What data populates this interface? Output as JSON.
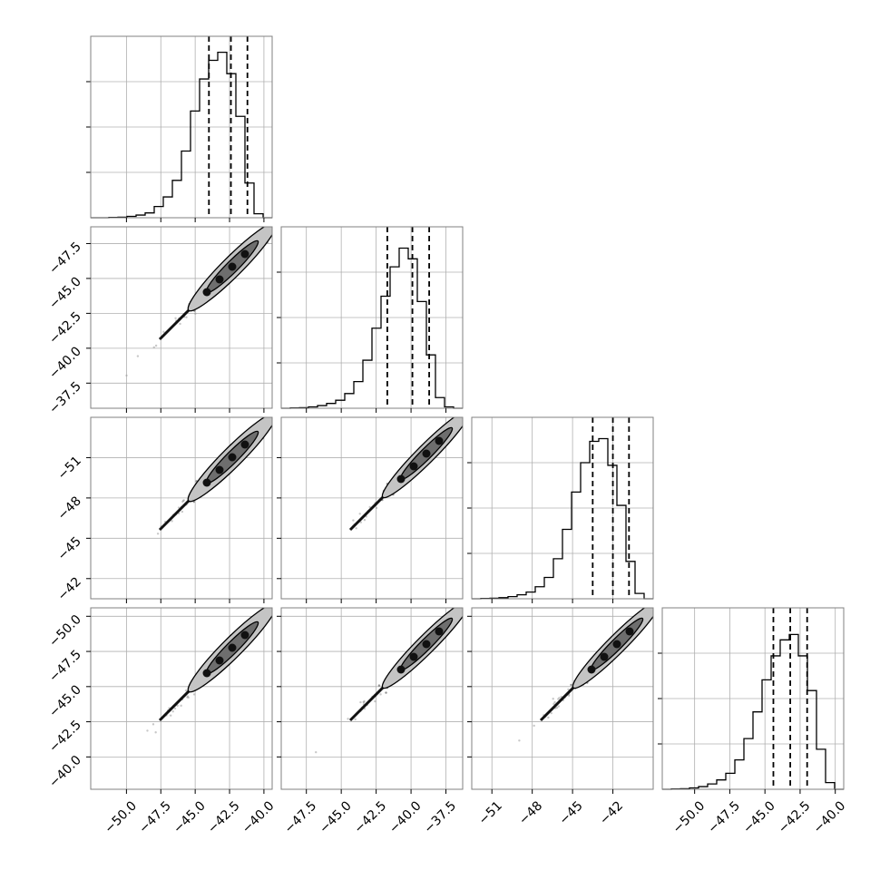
{
  "chart_data": {
    "type": "corner",
    "x_ticks": [
      [
        "−50.0",
        "−47.5",
        "−45.0",
        "−42.5",
        "−40.0"
      ],
      [
        "−47.5",
        "−45.0",
        "−42.5",
        "−40.0",
        "−37.5"
      ],
      [
        "−51",
        "−48",
        "−45",
        "−42"
      ],
      [
        "−50.0",
        "−47.5",
        "−45.0",
        "−42.5",
        "−40.0"
      ]
    ],
    "y_ticks": [
      [],
      [
        "−37.5",
        "−40.0",
        "−42.5",
        "−45.0",
        "−47.5"
      ],
      [
        "−42",
        "−45",
        "−48",
        "−51"
      ],
      [
        "−40.0",
        "−42.5",
        "−45.0",
        "−47.5",
        "−50.0"
      ]
    ],
    "parameters": [
      {
        "range": [
          -52.6,
          -39.4
        ],
        "major_ticks": [
          -50.0,
          -47.5,
          -45.0,
          -42.5,
          -40.0
        ],
        "quantiles": [
          -44.0,
          -42.4,
          -41.2
        ],
        "hist_bins": [
          -52.6,
          -51.94,
          -51.28,
          -50.62,
          -49.96,
          -49.3,
          -48.64,
          -47.98,
          -47.32,
          -46.66,
          -46.0,
          -45.34,
          -44.68,
          -44.02,
          -43.36,
          -42.7,
          -42.04,
          -41.38,
          -40.72,
          -40.06,
          -39.4
        ],
        "hist_counts": [
          0,
          0,
          1,
          2,
          5,
          10,
          18,
          42,
          78,
          140,
          250,
          400,
          520,
          590,
          620,
          540,
          380,
          130,
          15,
          0
        ]
      },
      {
        "range": [
          -49.3,
          -36.3
        ],
        "major_ticks": [
          -47.5,
          -45.0,
          -42.5,
          -40.0,
          -37.5
        ],
        "quantiles": [
          -41.7,
          -39.9,
          -38.7
        ],
        "hist_bins": [
          -49.3,
          -48.65,
          -48.0,
          -47.35,
          -46.7,
          -46.05,
          -45.4,
          -44.75,
          -44.1,
          -43.45,
          -42.8,
          -42.15,
          -41.5,
          -40.85,
          -40.2,
          -39.55,
          -38.9,
          -38.25,
          -37.6,
          -36.95,
          -36.3
        ],
        "hist_counts": [
          0,
          1,
          2,
          5,
          10,
          18,
          30,
          55,
          100,
          180,
          300,
          420,
          530,
          600,
          560,
          400,
          200,
          40,
          5,
          0
        ]
      },
      {
        "range": [
          -52.5,
          -39.0
        ],
        "major_ticks": [
          -51,
          -48,
          -45,
          -42
        ],
        "quantiles": [
          -43.5,
          -42.0,
          -40.8
        ],
        "hist_bins": [
          -52.5,
          -51.825,
          -51.15,
          -50.475,
          -49.8,
          -49.125,
          -48.45,
          -47.775,
          -47.1,
          -46.425,
          -45.75,
          -45.075,
          -44.4,
          -43.725,
          -43.05,
          -42.375,
          -41.7,
          -41.025,
          -40.35,
          -39.675,
          -39.0
        ],
        "hist_counts": [
          0,
          1,
          2,
          4,
          8,
          15,
          25,
          45,
          80,
          150,
          260,
          400,
          510,
          590,
          600,
          500,
          350,
          140,
          20,
          0
        ]
      },
      {
        "range": [
          -52.3,
          -39.4
        ],
        "major_ticks": [
          -50.0,
          -47.5,
          -45.0,
          -42.5,
          -40.0
        ],
        "quantiles": [
          -44.4,
          -43.2,
          -42.0
        ],
        "hist_bins": [
          -52.3,
          -51.655,
          -51.01,
          -50.365,
          -49.72,
          -49.075,
          -48.43,
          -47.785,
          -47.14,
          -46.495,
          -45.85,
          -45.205,
          -44.56,
          -43.915,
          -43.27,
          -42.625,
          -41.98,
          -41.335,
          -40.69,
          -40.045,
          -39.4
        ],
        "hist_counts": [
          0,
          1,
          2,
          5,
          10,
          20,
          35,
          60,
          110,
          190,
          290,
          410,
          500,
          560,
          580,
          500,
          370,
          150,
          25,
          0
        ]
      }
    ],
    "contours": [
      {
        "center_frac": 0.78,
        "inner_halfwidth": 0.032,
        "outer_halfwidth": 0.055
      },
      {
        "center_frac": 0.8,
        "inner_halfwidth": 0.03,
        "outer_halfwidth": 0.05
      }
    ],
    "hist_ylim_max": 680,
    "grid": true,
    "quantile_style": "dashed"
  }
}
